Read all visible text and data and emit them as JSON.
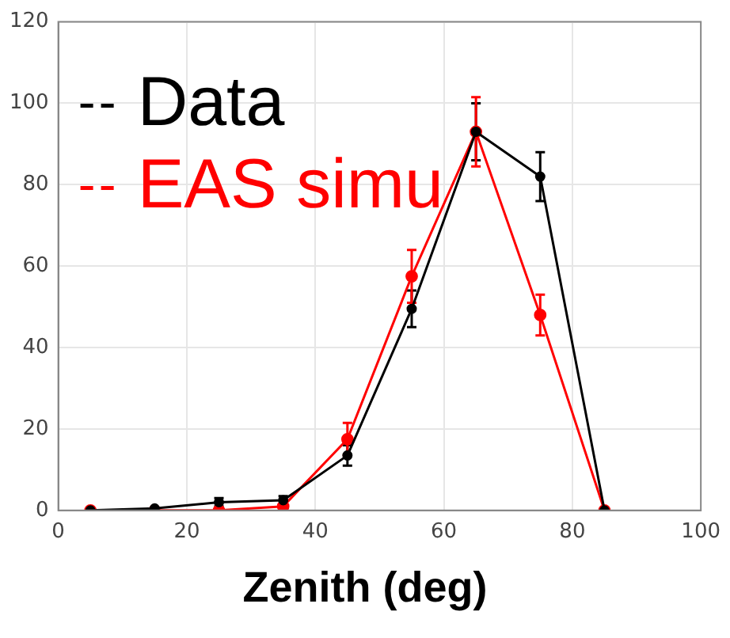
{
  "chart_data": {
    "type": "line",
    "xlabel": "Zenith (deg)",
    "x": [
      5,
      15,
      25,
      35,
      45,
      55,
      65,
      75,
      85
    ],
    "series": [
      {
        "name": "Data",
        "color": "#000000",
        "values": [
          0,
          0.5,
          2,
          2.5,
          13.5,
          49.5,
          93,
          82,
          0
        ],
        "errors": [
          null,
          null,
          1,
          1,
          2.5,
          4.5,
          7,
          6,
          null
        ]
      },
      {
        "name": "EAS simu",
        "color": "#ff0000",
        "values": [
          0,
          0,
          0,
          1,
          17.5,
          57.5,
          93,
          48,
          0
        ],
        "errors": [
          null,
          null,
          null,
          null,
          4,
          6.5,
          8.5,
          5,
          null
        ]
      }
    ],
    "xlim": [
      0,
      100
    ],
    "xticks": [
      0,
      20,
      40,
      60,
      80,
      100
    ],
    "ylim": [
      0,
      120
    ],
    "yticks": [
      0,
      20,
      40,
      60,
      80,
      100,
      120
    ],
    "grid": true,
    "legend": "top left",
    "marker": "circle",
    "line_style": "solid"
  }
}
